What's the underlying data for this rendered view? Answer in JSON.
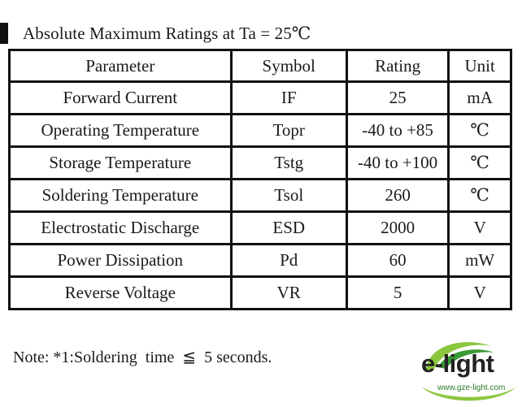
{
  "heading": "Absolute Maximum Ratings at Ta = 25℃",
  "table": {
    "headers": [
      "Parameter",
      "Symbol",
      "Rating",
      "Unit"
    ],
    "rows": [
      [
        "Forward Current",
        "IF",
        "25",
        "mA"
      ],
      [
        "Operating Temperature",
        "Topr",
        "-40 to +85",
        "℃"
      ],
      [
        "Storage Temperature",
        "Tstg",
        "-40 to +100",
        "℃"
      ],
      [
        "Soldering Temperature",
        "Tsol",
        "260",
        "℃"
      ],
      [
        "Electrostatic Discharge",
        "ESD",
        "2000",
        "V"
      ],
      [
        "Power Dissipation",
        "Pd",
        "60",
        "mW"
      ],
      [
        "Reverse Voltage",
        "VR",
        "5",
        "V"
      ]
    ]
  },
  "note": "Note: *1:Soldering  time  ≦  5 seconds.",
  "logo": {
    "wordmark": "e-light",
    "url": "www.gze-light.com",
    "colors": {
      "swoosh": "#8cc63f",
      "swoosh_dark": "#3a9a35",
      "text": "#222222"
    }
  }
}
